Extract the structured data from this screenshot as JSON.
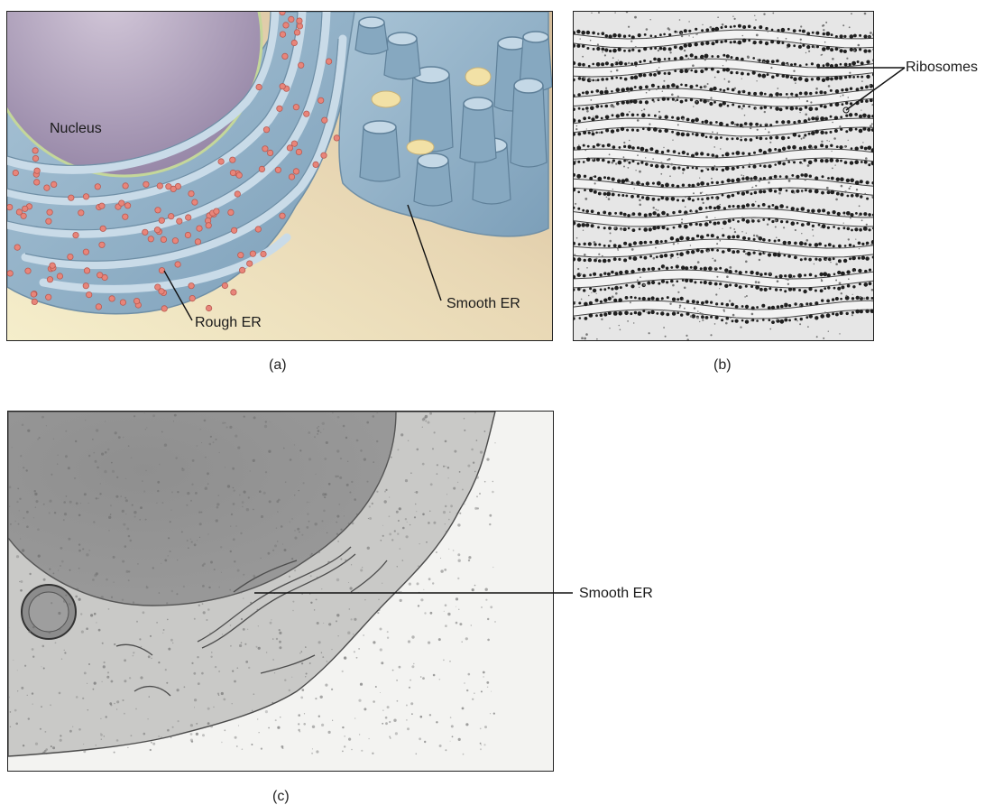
{
  "panel_a": {
    "labels": {
      "nucleus": "Nucleus",
      "rough_er": "Rough ER",
      "smooth_er": "Smooth ER"
    },
    "caption": "(a)"
  },
  "panel_b": {
    "labels": {
      "ribosomes": "Ribosomes"
    },
    "caption": "(b)"
  },
  "panel_c": {
    "labels": {
      "smooth_er": "Smooth ER"
    },
    "caption": "(c)"
  },
  "colors": {
    "background_gradient": [
      "#f4ecc6",
      "#d6bfa0"
    ],
    "nucleus": "#a597b3",
    "er_membrane": "#8eb0c7",
    "er_lumen": "#c6d9e6",
    "ribosome": "#e8857a",
    "micrograph_gray": "#c9c9c9"
  }
}
